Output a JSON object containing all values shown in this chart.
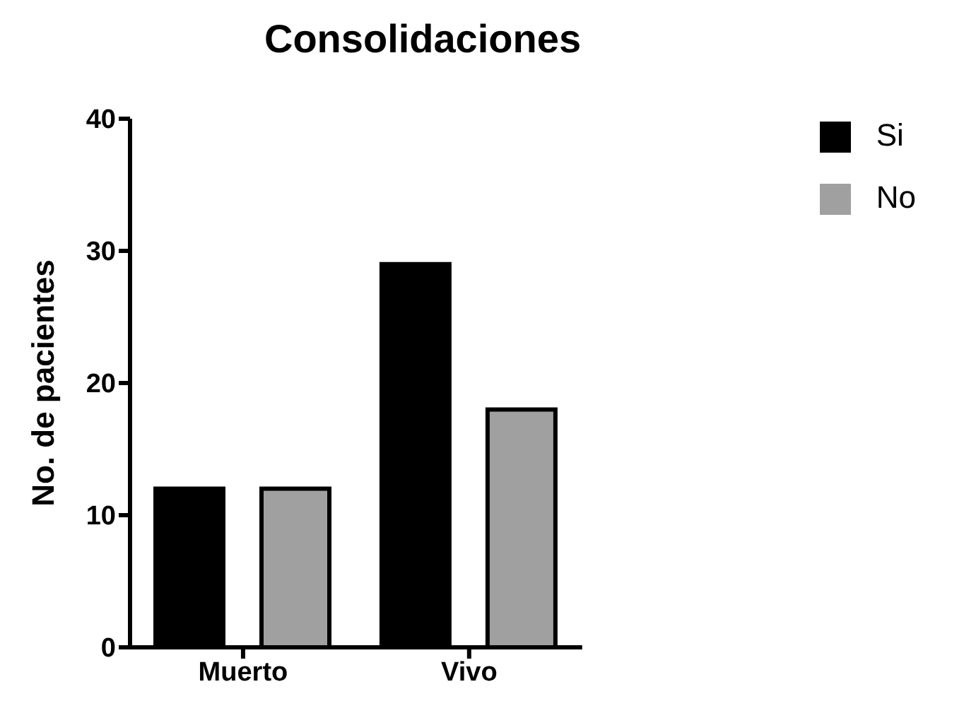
{
  "chart_data": {
    "type": "bar",
    "title": "Consolidaciones",
    "ylabel": "No. de pacientes",
    "categories": [
      "Muerto",
      "Vivo"
    ],
    "series": [
      {
        "name": "Si",
        "color": "#000000",
        "values": [
          12,
          29
        ]
      },
      {
        "name": "No",
        "color": "#a0a0a0",
        "values": [
          12,
          18
        ]
      }
    ],
    "ylim": [
      0,
      40
    ],
    "yticks": [
      0,
      10,
      20,
      30,
      40
    ],
    "grid": false,
    "legend": "top right"
  }
}
